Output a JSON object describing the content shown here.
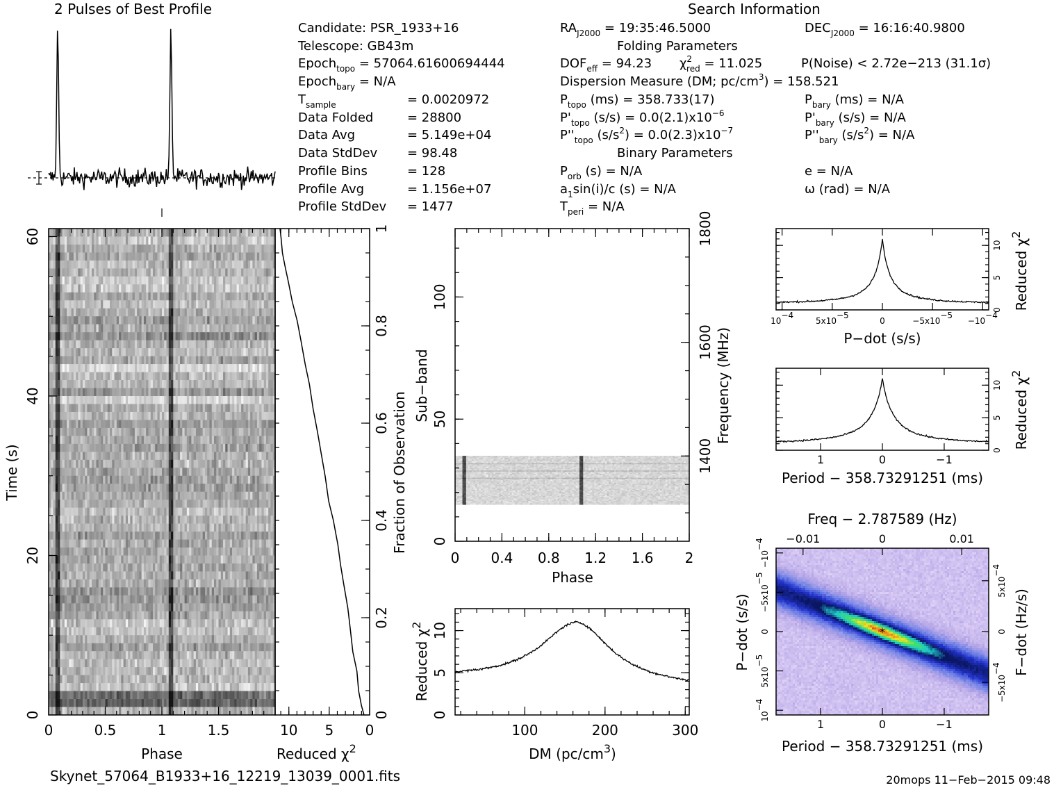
{
  "search_info": {
    "title": "Search Information",
    "candidate": "Candidate:  PSR_1933+16",
    "telescope": "Telescope:  GB43m",
    "epoch_topo": "Epoch",
    "epoch_topo_sub": "topo",
    "epoch_topo_val": " = 57064.61600694444",
    "epoch_bary": "Epoch",
    "epoch_bary_sub": "bary",
    "epoch_bary_val": " = N/A",
    "t_sample": "T",
    "t_sample_sub": "sample",
    "t_sample_val": "=   0.0020972",
    "data_folded": "Data Folded",
    "data_folded_val": "=   28800",
    "data_avg": "Data Avg",
    "data_avg_val": "=   5.149e+04",
    "data_stddev": "Data StdDev",
    "data_stddev_val": "=   98.48",
    "profile_bins": "Profile Bins",
    "profile_bins_val": "=   128",
    "profile_avg": "Profile Avg",
    "profile_avg_val": "=   1.156e+07",
    "profile_stddev": "Profile StdDev",
    "profile_stddev_val": "=   1477"
  },
  "folding": {
    "ra": "RA",
    "ra_sub": "J2000",
    "ra_val": " = 19:35:46.5000",
    "dec": "DEC",
    "dec_sub": "J2000",
    "dec_val": " = 16:16:40.9800",
    "title": "Folding Parameters",
    "dof": "DOF",
    "dof_sub": "eff",
    "dof_val": " = 94.23",
    "chi": "χ",
    "chi_sup": "2",
    "chi_sub": "red",
    "chi_val": " = 11.025",
    "pnoise": "P(Noise) < 2.72e−213   (31.1σ)",
    "dm": "Dispersion Measure (DM; pc/cm",
    "dm_sup": "3",
    "dm_val": ") = 158.521",
    "ptopo": "P",
    "ptopo_sub": "topo",
    "ptopo_val": " (ms) =  358.733(17)",
    "pdtopo": "P'",
    "pdtopo_sub": "topo",
    "pdtopo_val": " (s/s) = 0.0(2.1)x10",
    "pdtopo_exp": "−6",
    "pddtopo": "P''",
    "pddtopo_sub": "topo",
    "pddtopo_val": " (s/s",
    "pddtopo_sup": "2",
    "pddtopo_val2": ") = 0.0(2.3)x10",
    "pddtopo_exp": "−7",
    "pbary": "P",
    "pbary_sub": "bary",
    "pbary_val": " (ms) = N/A",
    "pdbary": "P'",
    "pdbary_sub": "bary",
    "pdbary_val": " (s/s) = N/A",
    "pddbary": "P''",
    "pddbary_sub": "bary",
    "pddbary_val": " (s/s",
    "pddbary_sup": "2",
    "pddbary_val2": ") = N/A",
    "binary_title": "Binary Parameters",
    "porb": "P",
    "porb_sub": "orb",
    "porb_val": " (s) = N/A",
    "a1": "a",
    "a1_sub": "1",
    "a1_val": "sin(i)/c (s) = N/A",
    "tperi": "T",
    "tperi_sub": "peri",
    "tperi_val": " = N/A",
    "e": "e = N/A",
    "omega": "ω (rad) = N/A"
  },
  "footer": {
    "filename": "Skynet_57064_B1933+16_12219_13039_0001.fits",
    "stamp": "20mops 11−Feb−2015 09:48"
  },
  "chart_data": [
    {
      "id": "profile",
      "type": "line",
      "title": "2 Pulses of Best Profile",
      "x_range": [
        0,
        2
      ],
      "peaks": [
        0.08,
        1.08
      ],
      "peak_height": 1.0,
      "noise_level": 0.06
    },
    {
      "id": "time-phase",
      "type": "heatmap",
      "xlabel": "Phase",
      "ylabel": "Time (s)",
      "x_ticks": [
        "0",
        "0.5",
        "1",
        "1.5"
      ],
      "x_tick_values": [
        0,
        0.5,
        1,
        1.5
      ],
      "x_range": [
        0,
        2
      ],
      "y_ticks": [
        "0",
        "20",
        "40",
        "60"
      ],
      "y_tick_values": [
        0,
        20,
        40,
        60
      ],
      "y_range": [
        0,
        61
      ],
      "colormap": "grayscale"
    },
    {
      "id": "chi-vs-time",
      "type": "line",
      "xlabel": "Reduced χ",
      "xlabel_sup": "2",
      "ylabel": "Fraction of Observation",
      "x_ticks": [
        "10",
        "5",
        "0"
      ],
      "x_tick_values": [
        10,
        5,
        0
      ],
      "x_range": [
        11.7,
        0
      ],
      "y_ticks": [
        "0",
        "0.2",
        "0.4",
        "0.6",
        "0.8",
        "1"
      ],
      "y_tick_values": [
        0,
        0.2,
        0.4,
        0.6,
        0.8,
        1.0
      ],
      "y_range": [
        0,
        1
      ],
      "x": [
        0.7,
        1.0,
        1.3,
        1.6,
        2.0,
        2.4,
        2.8,
        3.2,
        3.6,
        4.0,
        4.5,
        5.0,
        5.5,
        6.0,
        6.5,
        7.0,
        7.5,
        8.0,
        8.5,
        9.0,
        9.5,
        10.0,
        10.4,
        10.8,
        11.0,
        11.1
      ],
      "y": [
        0.0,
        0.02,
        0.05,
        0.09,
        0.13,
        0.18,
        0.22,
        0.27,
        0.31,
        0.35,
        0.4,
        0.44,
        0.49,
        0.54,
        0.58,
        0.63,
        0.68,
        0.72,
        0.77,
        0.81,
        0.85,
        0.89,
        0.92,
        0.95,
        0.98,
        1.0
      ]
    },
    {
      "id": "subband",
      "type": "heatmap",
      "xlabel": "Phase",
      "ylabel": "Sub−band",
      "ylabel2": "Frequency (MHz)",
      "x_ticks": [
        "0",
        "0.4",
        "0.8",
        "1.2",
        "1.6",
        "2"
      ],
      "x_tick_values": [
        0,
        0.4,
        0.8,
        1.2,
        1.6,
        2.0
      ],
      "x_range": [
        0,
        2
      ],
      "y_ticks": [
        "0",
        "50",
        "100"
      ],
      "y_tick_values": [
        0,
        50,
        100
      ],
      "y_range": [
        0,
        128
      ],
      "y2_ticks": [
        "1400",
        "1600",
        "1800"
      ],
      "y2_tick_values": [
        1400,
        1600,
        1800
      ],
      "y2_range": [
        1250,
        1800
      ],
      "band_range": [
        15,
        35
      ],
      "pulse_phases": [
        0.08,
        1.08
      ],
      "colormap": "grayscale"
    },
    {
      "id": "dm-chi",
      "type": "line",
      "xlabel": "DM (pc/cm",
      "xlabel_sup": "3",
      "xlabel_end": ")",
      "ylabel": "Reduced χ",
      "ylabel_sup": "2",
      "x_ticks": [
        "100",
        "200",
        "300"
      ],
      "x_tick_values": [
        100,
        200,
        300
      ],
      "x_range": [
        13,
        305
      ],
      "y_ticks": [
        "0",
        "5",
        "10"
      ],
      "y_tick_values": [
        0,
        5,
        10
      ],
      "y_range": [
        0,
        12.6
      ],
      "peak_x": 165,
      "peak_y": 11.2,
      "base_left": 4.3,
      "base_right": 3.3
    },
    {
      "id": "pdot-chi",
      "type": "line",
      "xlabel": "P−dot (s/s)",
      "ylabel": "Reduced χ",
      "ylabel_sup": "2",
      "x_ticks": [
        "10",
        "5x10",
        "0",
        "−5x10",
        "−10"
      ],
      "x_tick_exp": [
        "−4",
        "−5",
        "",
        "−5",
        "−4"
      ],
      "x_tick_values": [
        0.0001,
        5e-05,
        0,
        -5e-05,
        -0.0001
      ],
      "x_range": [
        0.000106,
        -0.000106
      ],
      "y_ticks": [
        "0",
        "5",
        "10"
      ],
      "y_tick_values": [
        0,
        5,
        10
      ],
      "y_range": [
        0,
        12.6
      ],
      "peak_y": 11.0,
      "base": 1.0
    },
    {
      "id": "period-chi",
      "type": "line",
      "xlabel": "Period − 358.73291251 (ms)",
      "ylabel": "Reduced χ",
      "ylabel_sup": "2",
      "x_ticks": [
        "1",
        "0",
        "−1"
      ],
      "x_tick_values": [
        1,
        0,
        -1
      ],
      "x_range": [
        1.72,
        -1.72
      ],
      "y_ticks": [
        "0",
        "5",
        "10"
      ],
      "y_tick_values": [
        0,
        5,
        10
      ],
      "y_range": [
        0,
        12.6
      ],
      "peak_y": 11.0,
      "base": 1.0
    },
    {
      "id": "ppdot",
      "type": "heatmap",
      "title": "Freq − 2.787589 (Hz)",
      "xlabel": "Period − 358.73291251 (ms)",
      "ylabel": "P−dot (s/s)",
      "ylabel2": "F−dot (Hz/s)",
      "x_ticks": [
        "1",
        "0",
        "−1"
      ],
      "x_tick_values": [
        1,
        0,
        -1
      ],
      "x_range": [
        1.72,
        -1.72
      ],
      "top_ticks": [
        "−0.01",
        "0",
        "0.01"
      ],
      "top_tick_values": [
        -0.01,
        0,
        0.01
      ],
      "top_range": [
        -0.0134,
        0.0134
      ],
      "y_ticks": [
        "10",
        "5x10",
        "0",
        "−5x10",
        "−10"
      ],
      "y_tick_exp": [
        "−4",
        "−5",
        "",
        "−5",
        "−4"
      ],
      "y_tick_values": [
        0.0001,
        5e-05,
        0,
        -5e-05,
        -0.0001
      ],
      "y_range": [
        0.000106,
        -0.000106
      ],
      "y2_ticks": [
        "−5x10",
        "0",
        "5x10"
      ],
      "y2_tick_exp": [
        "−4",
        "",
        "−4"
      ],
      "y2_tick_values": [
        -0.0005,
        0,
        0.0005
      ],
      "y2_range": [
        -0.00082,
        0.00082
      ],
      "colormap": "pink-blue-green-red",
      "colors": [
        "#f4e8ff",
        "#b9a9e8",
        "#6c7fe6",
        "#2233cc",
        "#0a1660",
        "#1ec8c8",
        "#40e070",
        "#f0e020",
        "#e03020"
      ]
    }
  ]
}
